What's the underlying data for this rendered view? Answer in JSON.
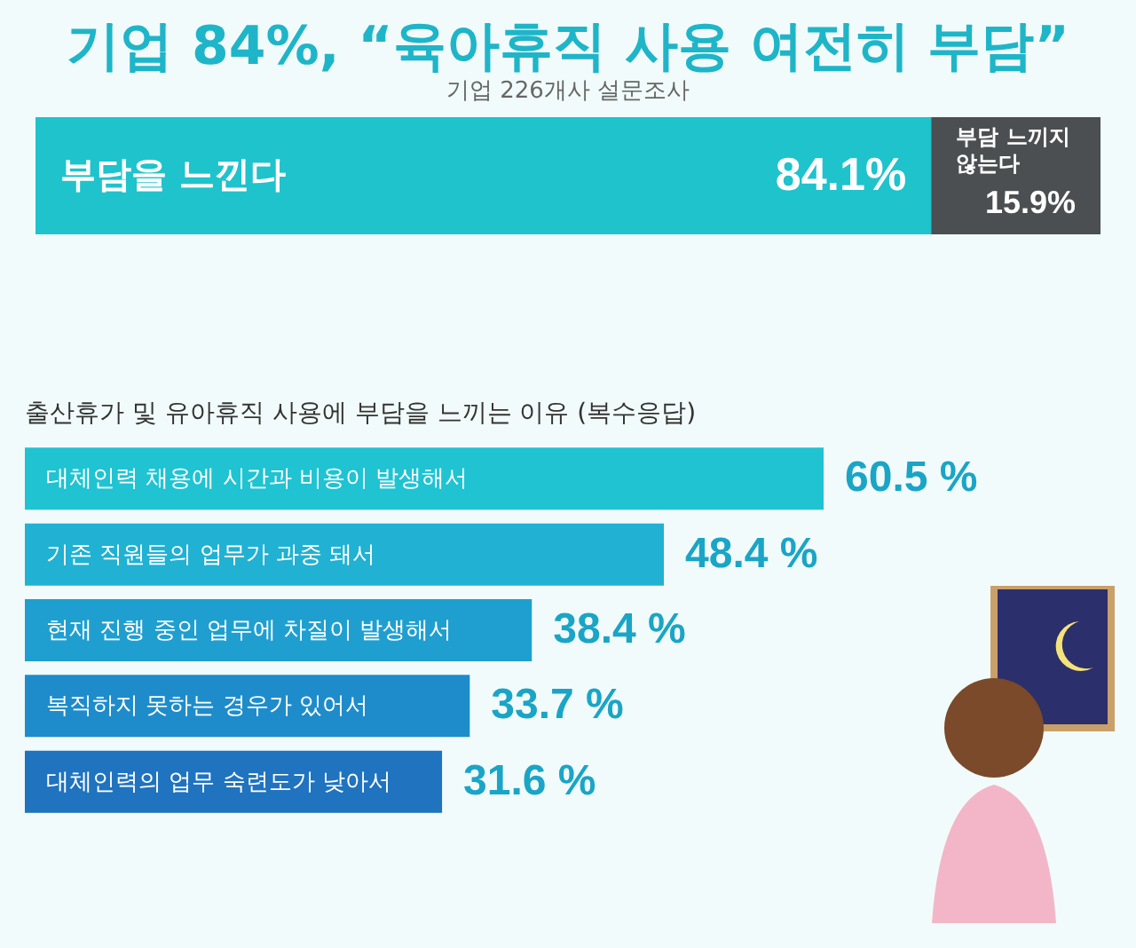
{
  "chart_data": [
    {
      "type": "bar",
      "stacked": true,
      "orientation": "horizontal",
      "tick_labels": false,
      "title": "기업 84%, “육아휴직 사용 여전히 부담”",
      "subtitle": "기업 226개사 설문조사",
      "categories": [
        null
      ],
      "series": [
        {
          "name": "부담을 느낀다",
          "color": "#1fc3cc",
          "values": [
            84.1
          ],
          "value_labels": [
            "84.1%"
          ]
        },
        {
          "name": "부담 느끼지 않는다",
          "color": "#4b4f51",
          "values": [
            15.9
          ],
          "value_labels": [
            "15.9%"
          ]
        }
      ]
    },
    {
      "type": "bar",
      "orientation": "horizontal",
      "tick_labels": false,
      "title": "출산휴가 및 유아휴직 사용에 부담을 느끼는 이유 (복수응답)",
      "categories": [
        "대체인력 채용에 시간과 비용이 발생해서",
        "기존 직원들의 업무가 과중 돼서",
        "현재 진행 중인 업무에 차질이 발생해서",
        "복직하지 못하는 경우가 있어서",
        "대체인력의 업무 숙련도가 낮아서"
      ],
      "values": [
        60.5,
        48.4,
        38.4,
        33.7,
        31.6
      ],
      "colors": [
        "#1fc3d2",
        "#20b1d3",
        "#1f9fd0",
        "#1e8ccb",
        "#1f73bf"
      ],
      "value_labels": [
        "60.5 %",
        "48.4 %",
        "38.4 %",
        "33.7 %",
        "31.6 %"
      ]
    }
  ]
}
